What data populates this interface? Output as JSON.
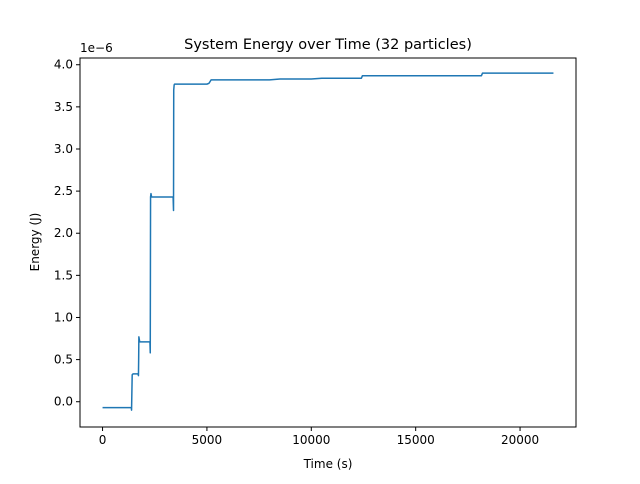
{
  "chart_data": {
    "type": "line",
    "title": "System Energy over Time (32 particles)",
    "xlabel": "Time (s)",
    "ylabel": "Energy (J)",
    "offset_label": "1e−6",
    "xlim": [
      -1080,
      22680
    ],
    "ylim": [
      -0.3,
      4.08
    ],
    "xticks": [
      0,
      5000,
      10000,
      15000,
      20000
    ],
    "xtick_labels": [
      "0",
      "5000",
      "10000",
      "15000",
      "20000"
    ],
    "yticks": [
      0.0,
      0.5,
      1.0,
      1.5,
      2.0,
      2.5,
      3.0,
      3.5,
      4.0
    ],
    "ytick_labels": [
      "0.0",
      "0.5",
      "1.0",
      "1.5",
      "2.0",
      "2.5",
      "3.0",
      "3.5",
      "4.0"
    ],
    "grid": false,
    "legend": "none",
    "line_color": "#1f77b4",
    "series": [
      {
        "x": [
          0,
          1380,
          1390,
          1420,
          1460,
          1480,
          1700,
          1720,
          1730,
          1740,
          1760,
          1780,
          1800,
          2270,
          2285,
          2300,
          2320,
          2350,
          2360,
          3380,
          3400,
          3410,
          3430,
          3450,
          3470,
          3500,
          5000,
          5100,
          5150,
          5200,
          5250,
          8000,
          8500,
          10000,
          10500,
          12400,
          12450,
          15000,
          18150,
          18200,
          20000,
          21600
        ],
        "y": [
          -0.07,
          -0.07,
          -0.1,
          0.32,
          0.33,
          0.33,
          0.33,
          0.31,
          0.5,
          0.77,
          0.74,
          0.71,
          0.71,
          0.71,
          0.58,
          2.43,
          2.47,
          2.43,
          2.43,
          2.43,
          2.27,
          3.7,
          3.76,
          3.77,
          3.77,
          3.77,
          3.77,
          3.78,
          3.8,
          3.82,
          3.82,
          3.82,
          3.83,
          3.83,
          3.84,
          3.84,
          3.87,
          3.87,
          3.87,
          3.9,
          3.9,
          3.9
        ]
      }
    ]
  }
}
